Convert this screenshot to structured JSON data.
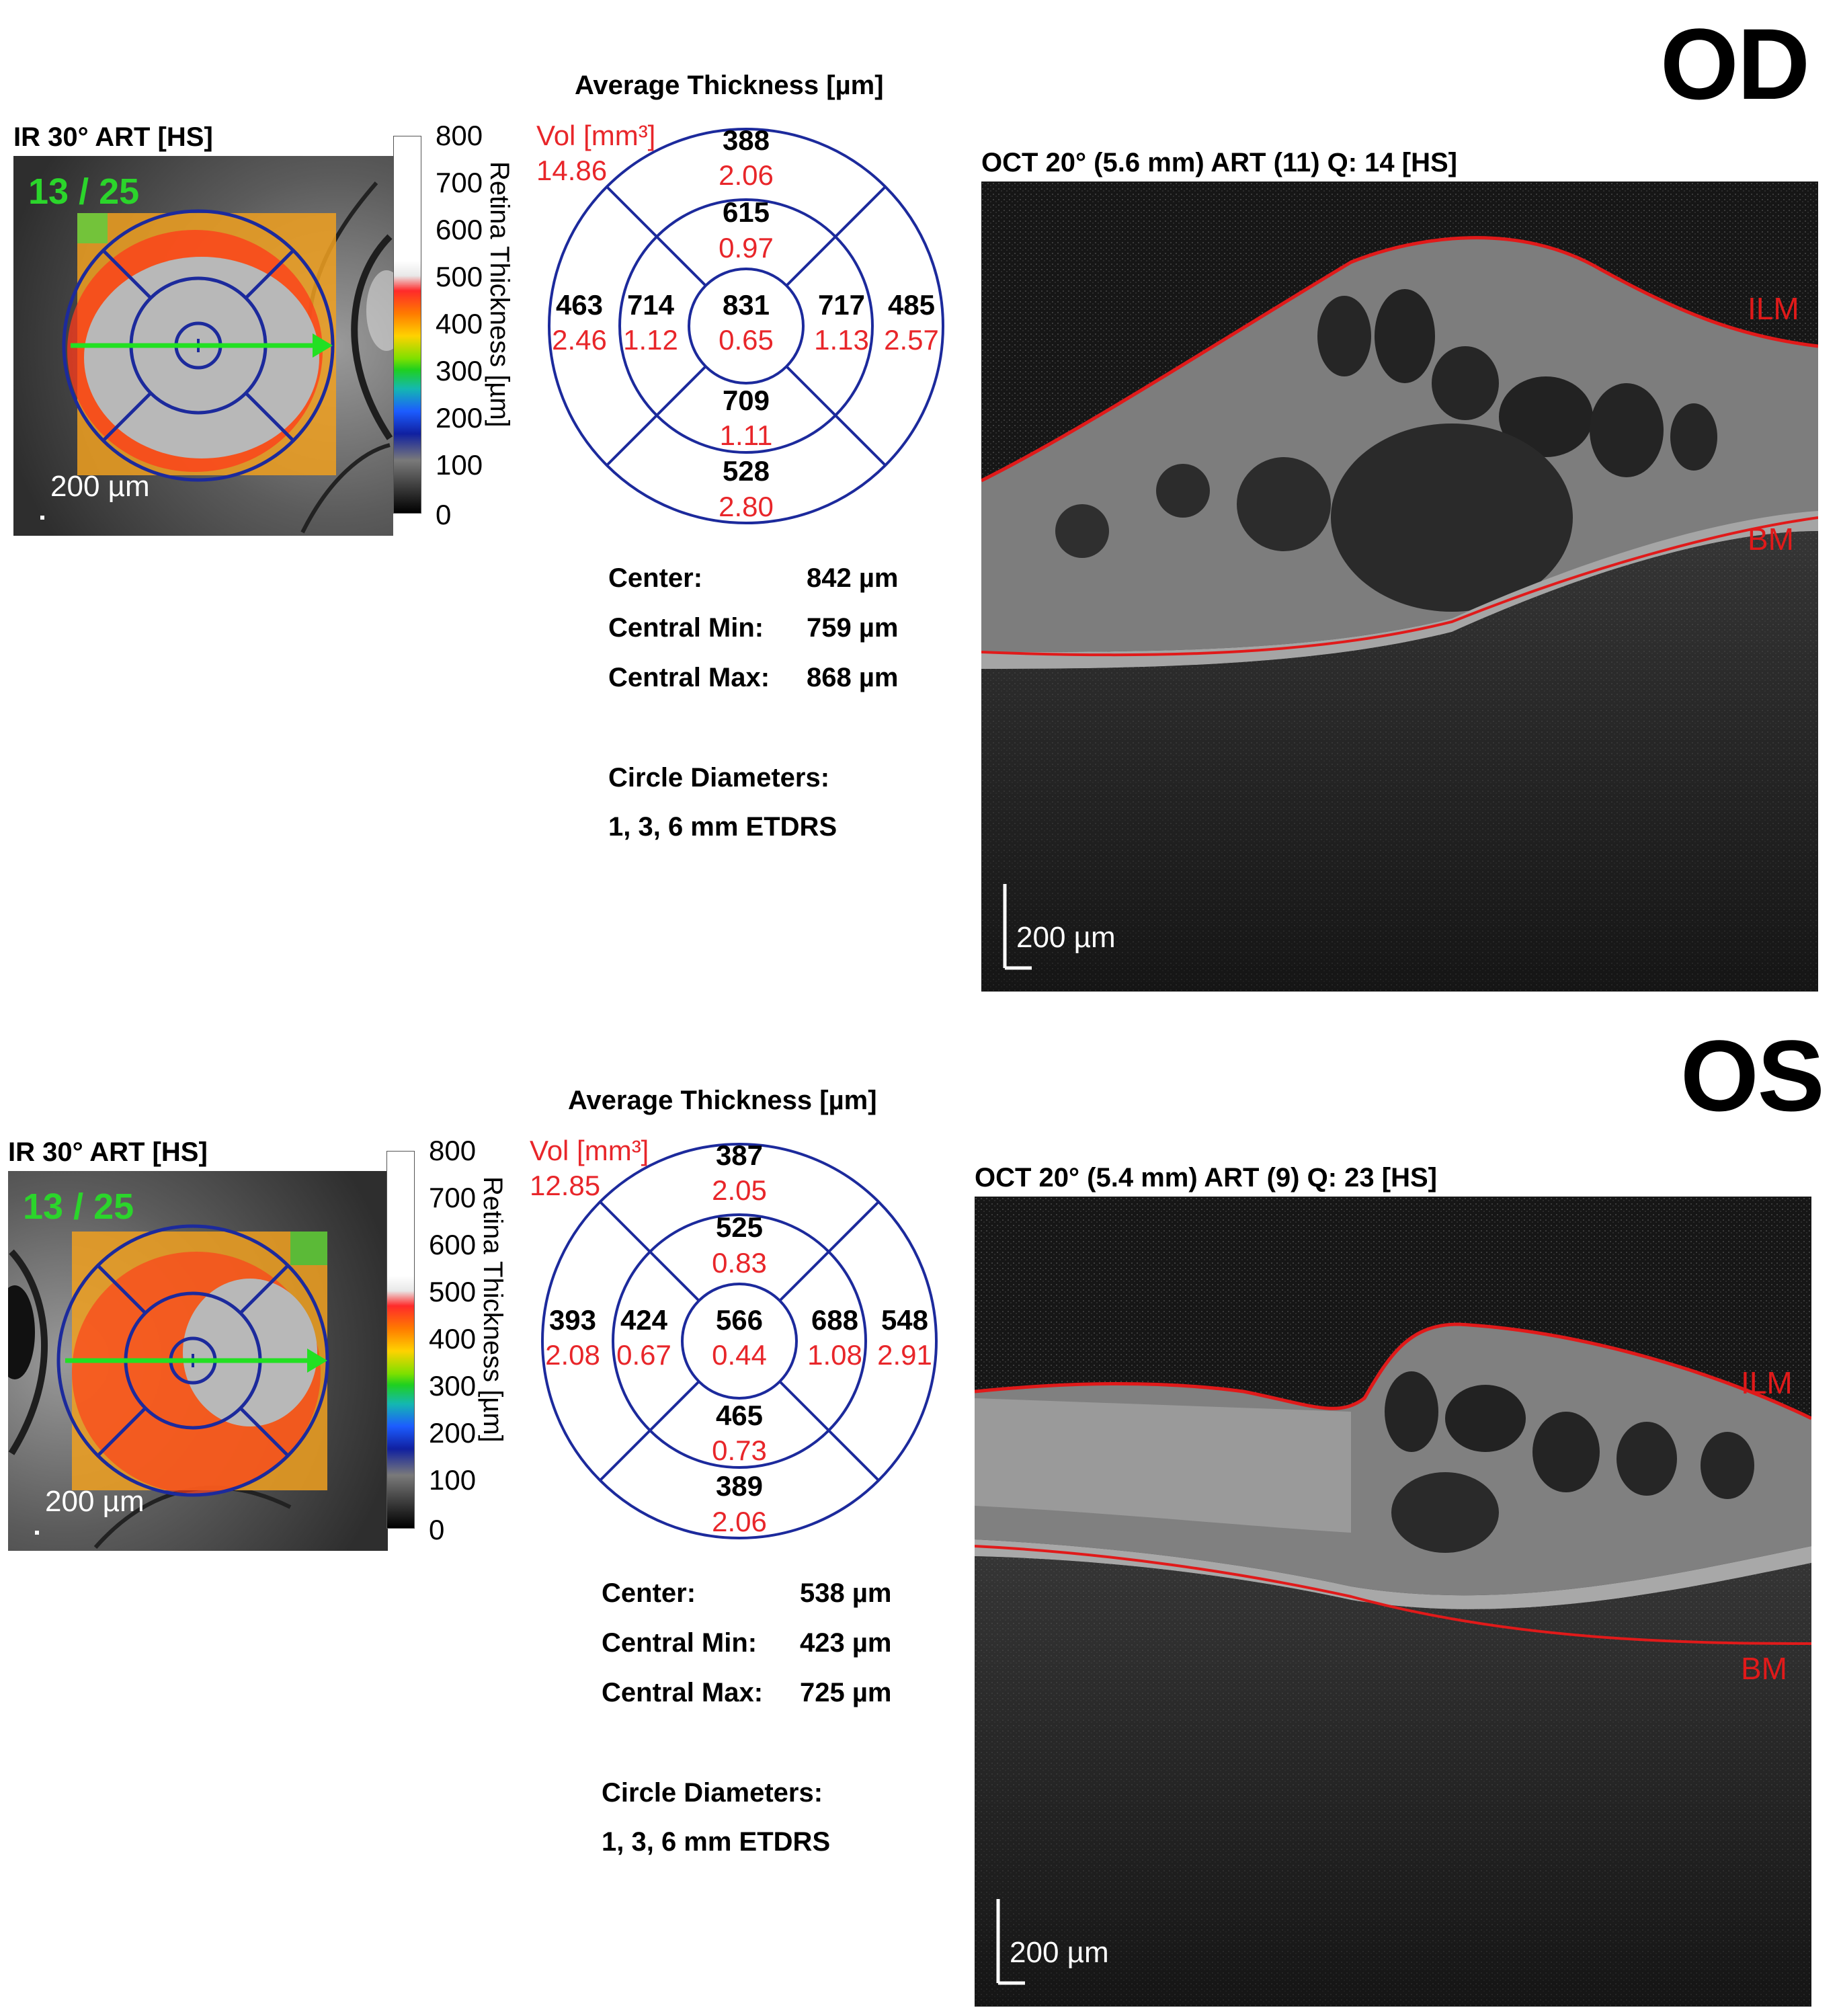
{
  "panels": [
    {
      "eye": "OD",
      "ir_title": "IR 30° ART [HS]",
      "scan_counter": "13 / 25",
      "ir_scale": "200 µm",
      "colorbar_ticks": [
        "800",
        "700",
        "600",
        "500",
        "400",
        "300",
        "200",
        "100",
        "0"
      ],
      "colorbar_title": "Retina Thickness [µm]",
      "thickness_title": "Average Thickness [µm]",
      "vol_label": "Vol [mm³]",
      "vol_total": "14.86",
      "sectors": {
        "outer_superior": {
          "thickness": "388",
          "volume": "2.06"
        },
        "inner_superior": {
          "thickness": "615",
          "volume": "0.97"
        },
        "outer_nasal_left": {
          "thickness": "463",
          "volume": "2.46"
        },
        "inner_left": {
          "thickness": "714",
          "volume": "1.12"
        },
        "center": {
          "thickness": "831",
          "volume": "0.65"
        },
        "inner_right": {
          "thickness": "717",
          "volume": "1.13"
        },
        "outer_right": {
          "thickness": "485",
          "volume": "2.57"
        },
        "inner_inferior": {
          "thickness": "709",
          "volume": "1.11"
        },
        "outer_inferior": {
          "thickness": "528",
          "volume": "2.80"
        }
      },
      "stats": [
        {
          "label": "Center:",
          "value": "842 µm"
        },
        {
          "label": "Central Min:",
          "value": "759 µm"
        },
        {
          "label": "Central Max:",
          "value": "868 µm"
        }
      ],
      "circle_label": "Circle Diameters:",
      "circle_value": "1, 3, 6 mm ETDRS",
      "oct_title": "OCT 20° (5.6 mm) ART (11) Q: 14 [HS]",
      "ilm_label": "ILM",
      "bm_label": "BM",
      "oct_scale": "200 µm"
    },
    {
      "eye": "OS",
      "ir_title": "IR 30° ART [HS]",
      "scan_counter": "13 / 25",
      "ir_scale": "200 µm",
      "colorbar_ticks": [
        "800",
        "700",
        "600",
        "500",
        "400",
        "300",
        "200",
        "100",
        "0"
      ],
      "colorbar_title": "Retina Thickness [µm]",
      "thickness_title": "Average Thickness [µm]",
      "vol_label": "Vol [mm³]",
      "vol_total": "12.85",
      "sectors": {
        "outer_superior": {
          "thickness": "387",
          "volume": "2.05"
        },
        "inner_superior": {
          "thickness": "525",
          "volume": "0.83"
        },
        "outer_nasal_left": {
          "thickness": "393",
          "volume": "2.08"
        },
        "inner_left": {
          "thickness": "424",
          "volume": "0.67"
        },
        "center": {
          "thickness": "566",
          "volume": "0.44"
        },
        "inner_right": {
          "thickness": "688",
          "volume": "1.08"
        },
        "outer_right": {
          "thickness": "548",
          "volume": "2.91"
        },
        "inner_inferior": {
          "thickness": "465",
          "volume": "0.73"
        },
        "outer_inferior": {
          "thickness": "389",
          "volume": "2.06"
        }
      },
      "stats": [
        {
          "label": "Center:",
          "value": "538 µm"
        },
        {
          "label": "Central Min:",
          "value": "423 µm"
        },
        {
          "label": "Central Max:",
          "value": "725 µm"
        }
      ],
      "circle_label": "Circle Diameters:",
      "circle_value": "1, 3, 6 mm ETDRS",
      "oct_title": "OCT 20° (5.4 mm) ART (9) Q: 23 [HS]",
      "ilm_label": "ILM",
      "bm_label": "BM",
      "oct_scale": "200 µm"
    }
  ],
  "colors": {
    "grid_lines": "#1c2a9c",
    "volume_text": "#e8262a",
    "layer_line": "#e01a1a",
    "scan_arrow": "#22e022"
  }
}
